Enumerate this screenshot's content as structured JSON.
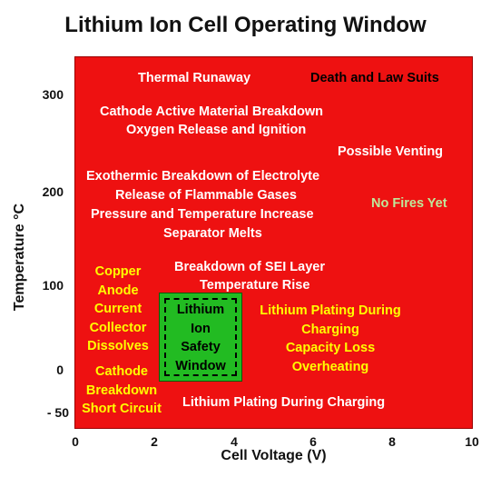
{
  "title": "Lithium Ion Cell Operating Window",
  "axes": {
    "x_label": "Cell Voltage (V)",
    "y_label": "Temperature °C",
    "x_ticks": [
      "0",
      "2",
      "4",
      "6",
      "8",
      "10"
    ],
    "y_ticks": [
      "300",
      "200",
      "100",
      "0",
      "- 50"
    ]
  },
  "colors": {
    "background_region": "#ee1111",
    "safe_window": "#22bb22",
    "white_text": "#ffffff",
    "yellow_text": "#ffff00",
    "green_text": "#bfe89a"
  },
  "regions": {
    "thermal_runaway": "Thermal Runaway",
    "death_law_suits": "Death and Law Suits",
    "cathode_breakdown_1": "Cathode Active Material Breakdown",
    "cathode_breakdown_2": "Oxygen Release and Ignition",
    "possible_venting": "Possible Venting",
    "electrolyte_1": "Exothermic Breakdown of Electrolyte",
    "electrolyte_2": "Release of Flammable Gases",
    "electrolyte_3": "Pressure and Temperature Increase",
    "electrolyte_4": "Separator Melts",
    "no_fires_yet": "No Fires Yet",
    "sei_1": "Breakdown of SEI Layer",
    "sei_2": "Temperature Rise",
    "copper_1": "Copper",
    "copper_2": "Anode",
    "copper_3": "Current",
    "copper_4": "Collector",
    "copper_5": "Dissolves",
    "plating_1": "Lithium Plating During",
    "plating_2": "Charging",
    "plating_3": "Capacity Loss",
    "plating_4": "Overheating",
    "cathode_low_1": "Cathode",
    "cathode_low_2": "Breakdown",
    "cathode_low_3": "Short Circuit",
    "plating_low": "Lithium Plating During Charging"
  },
  "safety_window": {
    "line1": "Lithium",
    "line2": "Ion",
    "line3": "Safety",
    "line4": "Window"
  }
}
